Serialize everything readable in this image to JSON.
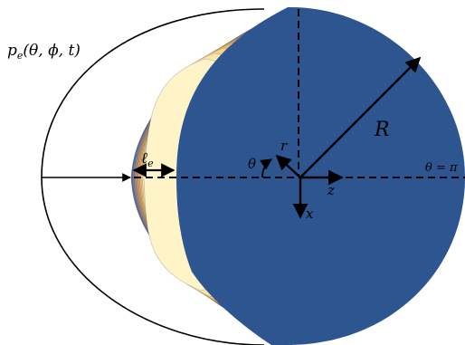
{
  "labels": {
    "pressure": "p",
    "pressure_sub": "e",
    "pressure_args": "(θ, ϕ, t)",
    "radius": "R",
    "thickness": "ℓ",
    "thickness_sub": "e",
    "theta": "θ",
    "r_axis": "r",
    "z_axis": "z",
    "x_axis": "x",
    "theta_pi": "θ = π"
  },
  "colors": {
    "sphere": "#2d5590",
    "outline": "#000000",
    "contours": [
      "#5c6c9a",
      "#7d7d96",
      "#9a8a8a",
      "#b99577",
      "#d39d62",
      "#e2aa60",
      "#eebd70",
      "#f6d48e",
      "#fbe6ac",
      "#fff4c8"
    ]
  }
}
